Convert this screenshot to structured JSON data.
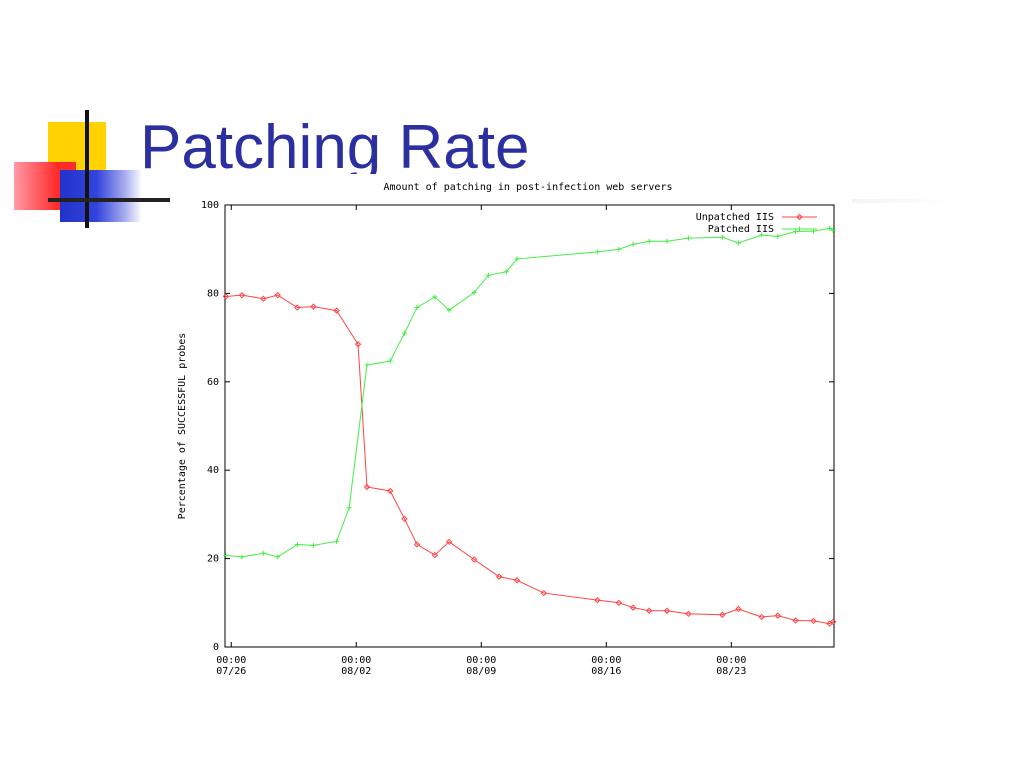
{
  "slide": {
    "title": "Patching Rate",
    "logo_icon": "office-squares-logo",
    "colors": {
      "title": "#2b2fa0",
      "yellow": "#ffd200",
      "red": "#ff2a2a",
      "blue": "#2233cc"
    }
  },
  "chart_data": {
    "type": "line",
    "title": "Amount of patching in post-infection web servers",
    "ylabel": "Percentage of SUCCESSFUL probes",
    "xlabel": "",
    "xlim": [
      -0.35,
      33.75
    ],
    "ylim": [
      0,
      100
    ],
    "yticks": [
      0,
      20,
      40,
      60,
      80,
      100
    ],
    "xticks": [
      {
        "x": 0,
        "line1": "00:00",
        "line2": "07/26"
      },
      {
        "x": 7,
        "line1": "00:00",
        "line2": "08/02"
      },
      {
        "x": 14,
        "line1": "00:00",
        "line2": "08/09"
      },
      {
        "x": 21,
        "line1": "00:00",
        "line2": "08/16"
      },
      {
        "x": 28,
        "line1": "00:00",
        "line2": "08/23"
      }
    ],
    "grid": false,
    "legend_position": "top-right",
    "series": [
      {
        "name": "Unpatched IIS",
        "color": "#ff4444",
        "marker": "diamond",
        "points": [
          [
            -0.3,
            79.3
          ],
          [
            0.6,
            79.6
          ],
          [
            1.8,
            78.8
          ],
          [
            2.6,
            79.6
          ],
          [
            3.7,
            76.8
          ],
          [
            4.6,
            77.0
          ],
          [
            5.9,
            76.1
          ],
          [
            7.1,
            68.5
          ],
          [
            7.6,
            36.2
          ],
          [
            8.9,
            35.3
          ],
          [
            9.7,
            29.0
          ],
          [
            10.4,
            23.2
          ],
          [
            11.4,
            20.8
          ],
          [
            12.2,
            23.8
          ],
          [
            13.6,
            19.8
          ],
          [
            15.0,
            15.9
          ],
          [
            16.0,
            15.1
          ],
          [
            17.5,
            12.2
          ],
          [
            20.5,
            10.6
          ],
          [
            21.7,
            10.0
          ],
          [
            22.5,
            8.9
          ],
          [
            23.4,
            8.2
          ],
          [
            24.4,
            8.2
          ],
          [
            25.6,
            7.5
          ],
          [
            27.5,
            7.3
          ],
          [
            28.4,
            8.6
          ],
          [
            29.7,
            6.8
          ],
          [
            30.6,
            7.1
          ],
          [
            31.6,
            6.0
          ],
          [
            32.6,
            5.9
          ],
          [
            33.5,
            5.3
          ],
          [
            33.7,
            5.7
          ]
        ]
      },
      {
        "name": "Patched IIS",
        "color": "#44ee44",
        "marker": "plus",
        "points": [
          [
            -0.3,
            20.7
          ],
          [
            0.6,
            20.4
          ],
          [
            1.8,
            21.2
          ],
          [
            2.6,
            20.4
          ],
          [
            3.7,
            23.2
          ],
          [
            4.6,
            23.0
          ],
          [
            5.9,
            23.9
          ],
          [
            6.6,
            31.5
          ],
          [
            7.6,
            63.8
          ],
          [
            8.9,
            64.7
          ],
          [
            9.7,
            71.0
          ],
          [
            10.4,
            76.8
          ],
          [
            11.4,
            79.2
          ],
          [
            12.2,
            76.2
          ],
          [
            13.6,
            80.2
          ],
          [
            14.4,
            84.1
          ],
          [
            15.4,
            84.9
          ],
          [
            16.0,
            87.8
          ],
          [
            20.5,
            89.4
          ],
          [
            21.7,
            90.0
          ],
          [
            22.5,
            91.1
          ],
          [
            23.4,
            91.8
          ],
          [
            24.4,
            91.8
          ],
          [
            25.6,
            92.5
          ],
          [
            27.5,
            92.7
          ],
          [
            28.4,
            91.4
          ],
          [
            29.7,
            93.2
          ],
          [
            30.6,
            92.9
          ],
          [
            31.6,
            94.0
          ],
          [
            32.6,
            94.1
          ],
          [
            33.5,
            94.7
          ],
          [
            33.7,
            94.3
          ]
        ]
      }
    ]
  }
}
